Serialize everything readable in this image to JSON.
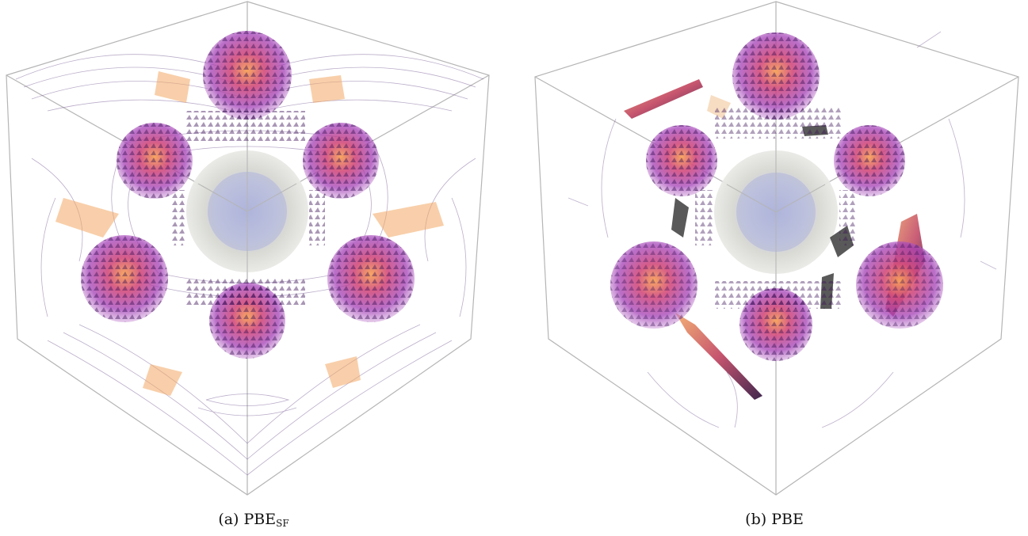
{
  "panels": [
    {
      "id": "a",
      "label": "(a)",
      "method": "PBE",
      "method_subscript": "SF"
    },
    {
      "id": "b",
      "label": "(b)",
      "method": "PBE",
      "method_subscript": ""
    }
  ],
  "colors": {
    "cube_edge": "#b5b5b5",
    "sphere_purple": "#a33fb6",
    "sphere_orange": "#f08a3e",
    "central_sphere_gray": "#cfd1cb",
    "central_sphere_blue": "#a9b0d8",
    "streamline": "#6a4c8a",
    "arrow_dark": "#3b1256"
  }
}
